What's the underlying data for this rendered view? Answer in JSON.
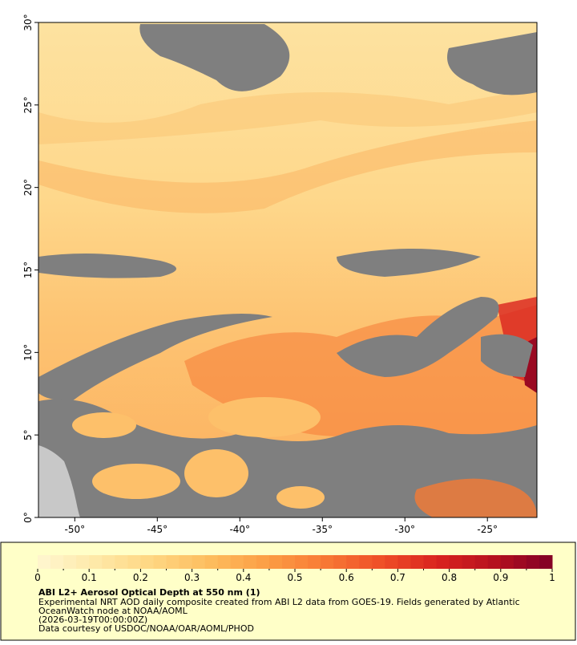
{
  "map": {
    "lon_range": [
      -52.2,
      -22
    ],
    "lat_range": [
      0,
      30
    ],
    "lon_ticks": [
      {
        "value": -50,
        "label": "-50°"
      },
      {
        "value": -45,
        "label": "-45°"
      },
      {
        "value": -40,
        "label": "-40°"
      },
      {
        "value": -35,
        "label": "-35°"
      },
      {
        "value": -30,
        "label": "-30°"
      },
      {
        "value": -25,
        "label": "-25°"
      }
    ],
    "lat_ticks": [
      {
        "value": 0,
        "label": "0°"
      },
      {
        "value": 5,
        "label": "5°"
      },
      {
        "value": 10,
        "label": "10°"
      },
      {
        "value": 15,
        "label": "15°"
      },
      {
        "value": 20,
        "label": "20°"
      },
      {
        "value": 25,
        "label": "25°"
      },
      {
        "value": 30,
        "label": "30°"
      }
    ]
  },
  "colorbar": {
    "range": [
      0,
      1
    ],
    "ticks": [
      0,
      0.1,
      0.2,
      0.3,
      0.4,
      0.5,
      0.6,
      0.7,
      0.8,
      0.9,
      1
    ],
    "colors": [
      "#fff6d0",
      "#fee9a8",
      "#fed682",
      "#fdbd5e",
      "#fc9e45",
      "#f87a35",
      "#ef4f28",
      "#d9231f",
      "#b5101f",
      "#800026"
    ]
  },
  "info": {
    "title": "ABI L2+ Aerosol Optical Depth at 550 nm (1)",
    "lines": [
      "Experimental NRT AOD daily composite created from ABI L2 data from GOES-19. Fields generated by Atlantic",
      "OceanWatch node at NOAA/AOML",
      "(2026-03-19T00:00:00Z)",
      "Data courtesy of USDOC/NOAA/OAR/AOML/PHOD"
    ]
  }
}
